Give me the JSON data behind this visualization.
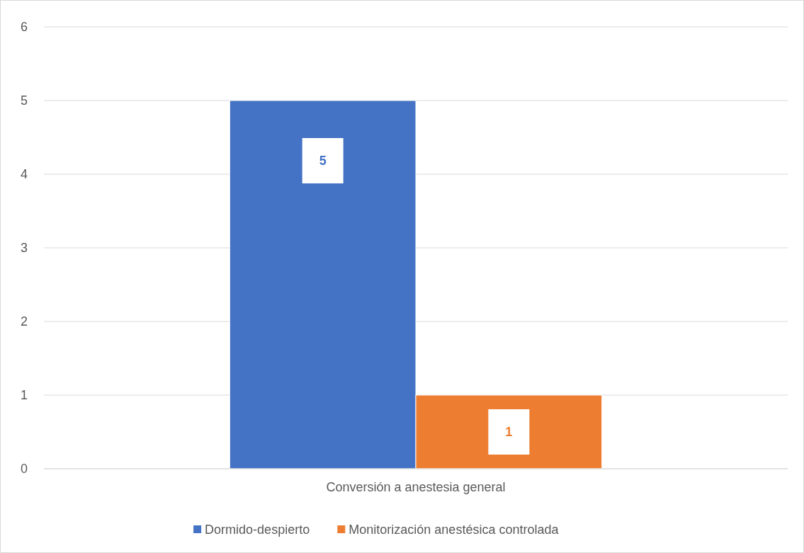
{
  "chart_data": {
    "type": "bar",
    "categories": [
      "Conversión a anestesia general"
    ],
    "series": [
      {
        "name": "Dormido-despierto",
        "color": "#4472c4",
        "values": [
          5
        ]
      },
      {
        "name": "Monitorización anestésica controlada",
        "color": "#ed7d31",
        "values": [
          1
        ]
      }
    ],
    "ylim": [
      0,
      6
    ],
    "yticks": [
      0,
      1,
      2,
      3,
      4,
      5,
      6
    ],
    "grid": "y",
    "legend": "bottom",
    "data_labels": true
  }
}
